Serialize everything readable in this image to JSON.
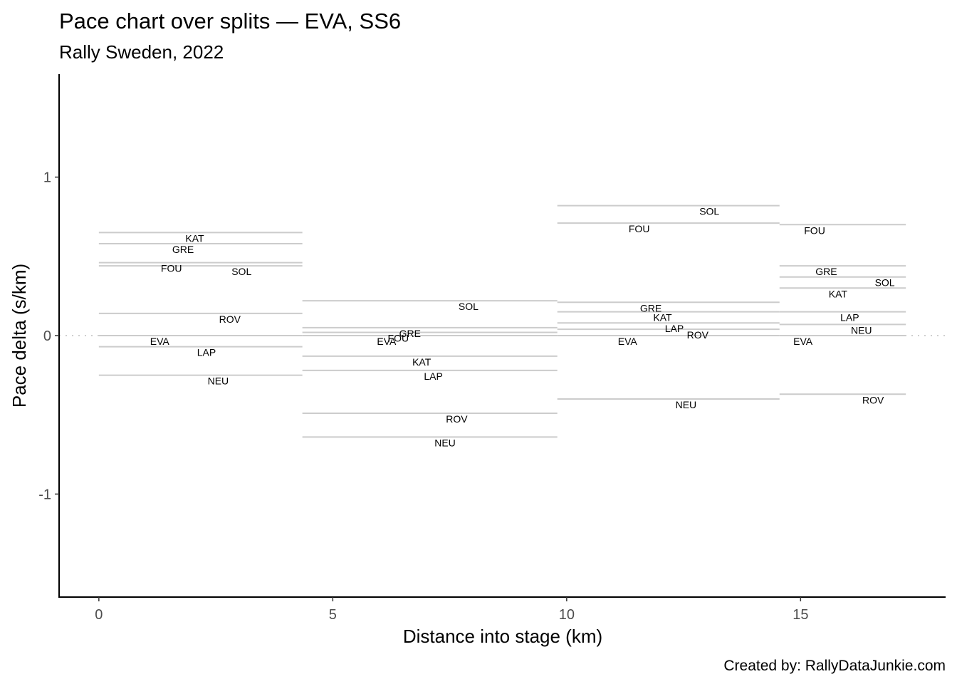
{
  "chart_data": {
    "type": "line",
    "title": "Pace chart over splits — EVA, SS6",
    "subtitle": "Rally Sweden, 2022",
    "xlabel": "Distance into stage (km)",
    "ylabel": "Pace delta (s/km)",
    "caption": "Created by: RallyDataJunkie.com",
    "xlim": [
      -0.85,
      18.1
    ],
    "ylim": [
      1.65,
      -1.65
    ],
    "x_ticks": [
      0,
      5,
      10,
      15
    ],
    "x_tick_labels": [
      "0",
      "5",
      "10",
      "15"
    ],
    "y_ticks": [
      -1,
      0,
      1
    ],
    "y_tick_labels": [
      "-1",
      "0",
      "1"
    ],
    "reference_line": 0,
    "splits": [
      {
        "start": 0.0,
        "end": 4.35,
        "drivers": [
          {
            "name": "NEU",
            "pace": -0.25,
            "label_x": 2.55
          },
          {
            "name": "LAP",
            "pace": -0.07,
            "label_x": 2.3
          },
          {
            "name": "EVA",
            "pace": 0.0,
            "label_x": 1.3
          },
          {
            "name": "ROV",
            "pace": 0.14,
            "label_x": 2.8
          },
          {
            "name": "SOL",
            "pace": 0.44,
            "label_x": 3.05
          },
          {
            "name": "FOU",
            "pace": 0.46,
            "label_x": 1.55
          },
          {
            "name": "GRE",
            "pace": 0.58,
            "label_x": 1.8
          },
          {
            "name": "KAT",
            "pace": 0.65,
            "label_x": 2.05
          }
        ]
      },
      {
        "start": 4.35,
        "end": 9.8,
        "drivers": [
          {
            "name": "NEU",
            "pace": -0.64,
            "label_x": 7.4
          },
          {
            "name": "ROV",
            "pace": -0.49,
            "label_x": 7.65
          },
          {
            "name": "LAP",
            "pace": -0.22,
            "label_x": 7.15
          },
          {
            "name": "KAT",
            "pace": -0.13,
            "label_x": 6.9
          },
          {
            "name": "EVA",
            "pace": 0.0,
            "label_x": 6.15
          },
          {
            "name": "FOU",
            "pace": 0.02,
            "label_x": 6.4
          },
          {
            "name": "GRE",
            "pace": 0.05,
            "label_x": 6.65
          },
          {
            "name": "SOL",
            "pace": 0.22,
            "label_x": 7.9
          }
        ]
      },
      {
        "start": 9.8,
        "end": 14.55,
        "drivers": [
          {
            "name": "NEU",
            "pace": -0.4,
            "label_x": 12.55
          },
          {
            "name": "EVA",
            "pace": 0.0,
            "label_x": 11.3
          },
          {
            "name": "ROV",
            "pace": 0.04,
            "label_x": 12.8
          },
          {
            "name": "LAP",
            "pace": 0.08,
            "label_x": 12.3
          },
          {
            "name": "KAT",
            "pace": 0.15,
            "label_x": 12.05
          },
          {
            "name": "GRE",
            "pace": 0.21,
            "label_x": 11.8
          },
          {
            "name": "FOU",
            "pace": 0.71,
            "label_x": 11.55
          },
          {
            "name": "SOL",
            "pace": 0.82,
            "label_x": 13.05
          }
        ]
      },
      {
        "start": 14.55,
        "end": 17.25,
        "drivers": [
          {
            "name": "ROV",
            "pace": -0.37,
            "label_x": 16.55
          },
          {
            "name": "EVA",
            "pace": 0.0,
            "label_x": 15.05
          },
          {
            "name": "NEU",
            "pace": 0.07,
            "label_x": 16.3
          },
          {
            "name": "LAP",
            "pace": 0.15,
            "label_x": 16.05
          },
          {
            "name": "KAT",
            "pace": 0.3,
            "label_x": 15.8
          },
          {
            "name": "SOL",
            "pace": 0.37,
            "label_x": 16.8
          },
          {
            "name": "GRE",
            "pace": 0.44,
            "label_x": 15.55
          },
          {
            "name": "FOU",
            "pace": 0.7,
            "label_x": 15.3
          }
        ]
      }
    ]
  }
}
